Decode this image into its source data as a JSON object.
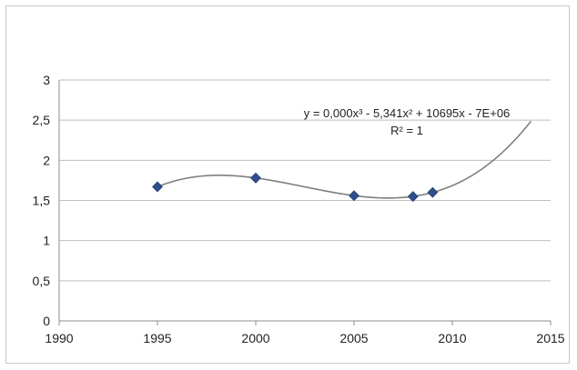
{
  "chart_data": {
    "type": "scatter",
    "title": "",
    "xlabel": "",
    "ylabel": "",
    "xlim": [
      1990,
      2015
    ],
    "ylim": [
      0,
      3
    ],
    "x_ticks": [
      "1990",
      "1995",
      "2000",
      "2005",
      "2010",
      "2015"
    ],
    "x_tick_values": [
      1990,
      1995,
      2000,
      2005,
      2010,
      2015
    ],
    "y_ticks": [
      "0",
      "0,5",
      "1",
      "1,5",
      "2",
      "2,5",
      "3"
    ],
    "y_tick_values": [
      0,
      0.5,
      1,
      1.5,
      2,
      2.5,
      3
    ],
    "grid": "horizontal",
    "series": [
      {
        "name": "",
        "marker": "diamond",
        "color": "#2e4f8a",
        "x": [
          1995,
          2000,
          2005,
          2008,
          2009
        ],
        "y": [
          1.67,
          1.78,
          1.56,
          1.55,
          1.6
        ]
      }
    ],
    "trendline": {
      "type": "polynomial",
      "order": 3,
      "color": "#7f7f7f",
      "x_range": [
        1995,
        2014
      ],
      "equation": "y = 0,000x³ - 5,341x² + 10695x - 7E+06",
      "r_squared": "R² = 1"
    },
    "colors": {
      "gridline": "#bfbfbf",
      "axis": "#8c8c8c"
    }
  }
}
